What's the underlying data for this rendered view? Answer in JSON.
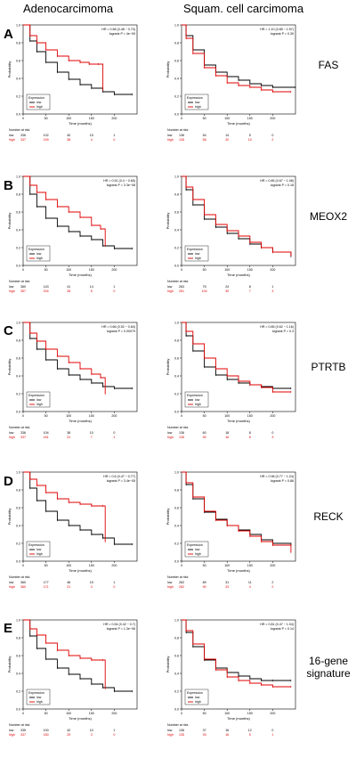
{
  "column_titles": [
    "Adenocarcimoma",
    "Squam. cell carcimoma"
  ],
  "rows": [
    {
      "letter": "A",
      "gene": "FAS",
      "panels": [
        {
          "hr_text": "HR = 0.58 (0.48 − 0.70)",
          "p_text": "logrank P = 4e−09",
          "risk_header": "Number at risk",
          "risk_low": [
            "low",
            "336",
            "102",
            "40",
            "15",
            "1"
          ],
          "risk_high": [
            "high",
            "337",
            "159",
            "38",
            "4",
            "0"
          ]
        },
        {
          "hr_text": "HR = 1.10 (0.85 − 1.57)",
          "p_text": "logrank P = 0.39",
          "risk_header": "Number at risk",
          "risk_low": [
            "low",
            "136",
            "54",
            "14",
            "5",
            "0"
          ],
          "risk_high": [
            "high",
            "135",
            "58",
            "20",
            "10",
            "2"
          ]
        }
      ]
    },
    {
      "letter": "B",
      "gene": "MEOX2",
      "panels": [
        {
          "hr_text": "HR = 0.51 (0.4 − 0.65)",
          "p_text": "logrank P = 3.3e−08",
          "risk_header": "Number at risk",
          "risk_low": [
            "low",
            "360",
            "143",
            "41",
            "14",
            "1"
          ],
          "risk_high": [
            "high",
            "357",
            "204",
            "28",
            "5",
            "0"
          ]
        },
        {
          "hr_text": "HR = 0.85 (0.67 − 1.08)",
          "p_text": "logrank P = 0.18",
          "risk_header": "Number at risk",
          "risk_low": [
            "low",
            "263",
            "75",
            "24",
            "8",
            "1"
          ],
          "risk_high": [
            "high",
            "261",
            "104",
            "30",
            "7",
            "3"
          ]
        }
      ]
    },
    {
      "letter": "C",
      "gene": "PTRTB",
      "panels": [
        {
          "hr_text": "HR = 0.66 (0.52 − 0.84)",
          "p_text": "logrank P = 0.00079",
          "risk_header": "Number at risk",
          "risk_low": [
            "low",
            "336",
            "104",
            "38",
            "10",
            "0"
          ],
          "risk_high": [
            "high",
            "337",
            "161",
            "31",
            "7",
            "1"
          ]
        },
        {
          "hr_text": "HR = 0.85 (0.62 − 1.16)",
          "p_text": "logrank P = 0.3",
          "risk_header": "Number at risk",
          "risk_low": [
            "low",
            "136",
            "60",
            "18",
            "8",
            "0"
          ],
          "risk_high": [
            "high",
            "135",
            "90",
            "16",
            "8",
            "3"
          ]
        }
      ]
    },
    {
      "letter": "D",
      "gene": "RECK",
      "panels": [
        {
          "hr_text": "HR = 0.6 (0.47 − 0.77)",
          "p_text": "logrank P = 3.4e−05",
          "risk_header": "Number at risk",
          "risk_low": [
            "low",
            "360",
            "177",
            "46",
            "15",
            "1"
          ],
          "risk_high": [
            "high",
            "360",
            "171",
            "21",
            "3",
            "0"
          ]
        },
        {
          "hr_text": "HR = 0.98 (0.77 − 1.24)",
          "p_text": "logrank P = 0.86",
          "risk_header": "Number at risk",
          "risk_low": [
            "low",
            "262",
            "89",
            "31",
            "11",
            "2"
          ],
          "risk_high": [
            "high",
            "262",
            "90",
            "23",
            "4",
            "2"
          ]
        }
      ]
    },
    {
      "letter": "E",
      "gene": "16-gene\nsignature",
      "panels": [
        {
          "hr_text": "HR = 0.54 (0.42 − 0.7)",
          "p_text": "logrank P = 1.3e−06",
          "risk_header": "Number at risk",
          "risk_low": [
            "low",
            "335",
            "100",
            "42",
            "10",
            "1"
          ],
          "risk_high": [
            "high",
            "337",
            "160",
            "29",
            "3",
            "0"
          ]
        },
        {
          "hr_text": "HR = 0.81 (0.47 − 1.04)",
          "p_text": "logrank P = 0.14",
          "risk_header": "Number at risk",
          "risk_low": [
            "low",
            "136",
            "37",
            "16",
            "12",
            "0"
          ],
          "risk_high": [
            "high",
            "135",
            "93",
            "16",
            "5",
            "1"
          ]
        }
      ]
    }
  ],
  "chart_data": {
    "type": "line",
    "xlabel": "Time (months)",
    "ylabel": "Probability",
    "xlim": [
      0,
      250
    ],
    "ylim": [
      0,
      1
    ],
    "xticks": [
      "0",
      "50",
      "100",
      "150",
      "200"
    ],
    "yticks": [
      "0.0",
      "0.2",
      "0.4",
      "0.6",
      "0.8",
      "1.0"
    ],
    "legend_title": "Expression",
    "legend_entries": [
      "low",
      "high"
    ],
    "legend_position": "bottom-left",
    "colors": {
      "low": "#000000",
      "high": "#e00000"
    },
    "panels": [
      {
        "row": "A",
        "col": 0,
        "low": [
          [
            0,
            1
          ],
          [
            15,
            0.82
          ],
          [
            30,
            0.7
          ],
          [
            50,
            0.58
          ],
          [
            75,
            0.47
          ],
          [
            100,
            0.39
          ],
          [
            125,
            0.33
          ],
          [
            150,
            0.29
          ],
          [
            175,
            0.25
          ],
          [
            200,
            0.22
          ],
          [
            240,
            0.22
          ]
        ],
        "high": [
          [
            0,
            1
          ],
          [
            15,
            0.88
          ],
          [
            30,
            0.8
          ],
          [
            50,
            0.72
          ],
          [
            75,
            0.65
          ],
          [
            100,
            0.6
          ],
          [
            125,
            0.58
          ],
          [
            145,
            0.56
          ],
          [
            165,
            0.56
          ],
          [
            175,
            0.27
          ]
        ]
      },
      {
        "row": "A",
        "col": 1,
        "low": [
          [
            0,
            1
          ],
          [
            10,
            0.88
          ],
          [
            25,
            0.72
          ],
          [
            50,
            0.55
          ],
          [
            75,
            0.47
          ],
          [
            100,
            0.42
          ],
          [
            125,
            0.38
          ],
          [
            150,
            0.34
          ],
          [
            175,
            0.32
          ],
          [
            200,
            0.3
          ],
          [
            250,
            0.3
          ]
        ],
        "high": [
          [
            0,
            1
          ],
          [
            10,
            0.85
          ],
          [
            25,
            0.68
          ],
          [
            50,
            0.52
          ],
          [
            75,
            0.43
          ],
          [
            100,
            0.35
          ],
          [
            125,
            0.32
          ],
          [
            150,
            0.3
          ],
          [
            175,
            0.27
          ],
          [
            200,
            0.25
          ],
          [
            240,
            0.25
          ]
        ]
      },
      {
        "row": "B",
        "col": 0,
        "low": [
          [
            0,
            1
          ],
          [
            15,
            0.8
          ],
          [
            30,
            0.66
          ],
          [
            50,
            0.53
          ],
          [
            75,
            0.44
          ],
          [
            100,
            0.38
          ],
          [
            125,
            0.33
          ],
          [
            150,
            0.29
          ],
          [
            175,
            0.22
          ],
          [
            200,
            0.19
          ],
          [
            240,
            0.19
          ]
        ],
        "high": [
          [
            0,
            1
          ],
          [
            15,
            0.9
          ],
          [
            30,
            0.82
          ],
          [
            50,
            0.74
          ],
          [
            75,
            0.66
          ],
          [
            100,
            0.6
          ],
          [
            125,
            0.54
          ],
          [
            150,
            0.45
          ],
          [
            170,
            0.41
          ],
          [
            180,
            0.22
          ]
        ]
      },
      {
        "row": "B",
        "col": 1,
        "low": [
          [
            0,
            1
          ],
          [
            10,
            0.85
          ],
          [
            25,
            0.68
          ],
          [
            50,
            0.52
          ],
          [
            75,
            0.43
          ],
          [
            100,
            0.36
          ],
          [
            125,
            0.3
          ],
          [
            150,
            0.24
          ],
          [
            175,
            0.2
          ],
          [
            200,
            0.15
          ],
          [
            240,
            0.1
          ]
        ],
        "high": [
          [
            0,
            1
          ],
          [
            10,
            0.88
          ],
          [
            25,
            0.74
          ],
          [
            50,
            0.57
          ],
          [
            75,
            0.46
          ],
          [
            100,
            0.39
          ],
          [
            125,
            0.33
          ],
          [
            150,
            0.26
          ],
          [
            175,
            0.2
          ],
          [
            200,
            0.15
          ],
          [
            240,
            0.11
          ]
        ]
      },
      {
        "row": "C",
        "col": 0,
        "low": [
          [
            0,
            1
          ],
          [
            15,
            0.82
          ],
          [
            30,
            0.7
          ],
          [
            50,
            0.58
          ],
          [
            75,
            0.48
          ],
          [
            100,
            0.41
          ],
          [
            125,
            0.36
          ],
          [
            150,
            0.32
          ],
          [
            175,
            0.28
          ],
          [
            200,
            0.26
          ],
          [
            240,
            0.26
          ]
        ],
        "high": [
          [
            0,
            1
          ],
          [
            15,
            0.88
          ],
          [
            30,
            0.79
          ],
          [
            50,
            0.7
          ],
          [
            75,
            0.62
          ],
          [
            100,
            0.55
          ],
          [
            125,
            0.48
          ],
          [
            150,
            0.42
          ],
          [
            170,
            0.38
          ],
          [
            180,
            0.2
          ]
        ]
      },
      {
        "row": "C",
        "col": 1,
        "low": [
          [
            0,
            1
          ],
          [
            10,
            0.85
          ],
          [
            25,
            0.68
          ],
          [
            50,
            0.5
          ],
          [
            75,
            0.41
          ],
          [
            100,
            0.36
          ],
          [
            125,
            0.32
          ],
          [
            150,
            0.3
          ],
          [
            175,
            0.28
          ],
          [
            200,
            0.26
          ],
          [
            240,
            0.26
          ]
        ],
        "high": [
          [
            0,
            1
          ],
          [
            10,
            0.9
          ],
          [
            25,
            0.76
          ],
          [
            50,
            0.6
          ],
          [
            75,
            0.48
          ],
          [
            100,
            0.4
          ],
          [
            125,
            0.34
          ],
          [
            150,
            0.3
          ],
          [
            175,
            0.27
          ],
          [
            200,
            0.22
          ],
          [
            240,
            0.22
          ]
        ]
      },
      {
        "row": "D",
        "col": 0,
        "low": [
          [
            0,
            1
          ],
          [
            15,
            0.82
          ],
          [
            30,
            0.68
          ],
          [
            50,
            0.56
          ],
          [
            75,
            0.46
          ],
          [
            100,
            0.4
          ],
          [
            125,
            0.35
          ],
          [
            150,
            0.3
          ],
          [
            175,
            0.26
          ],
          [
            200,
            0.19
          ],
          [
            240,
            0.19
          ]
        ],
        "high": [
          [
            0,
            1
          ],
          [
            15,
            0.92
          ],
          [
            30,
            0.85
          ],
          [
            50,
            0.77
          ],
          [
            75,
            0.7
          ],
          [
            100,
            0.66
          ],
          [
            125,
            0.64
          ],
          [
            150,
            0.62
          ],
          [
            175,
            0.62
          ],
          [
            180,
            0.22
          ]
        ]
      },
      {
        "row": "D",
        "col": 1,
        "low": [
          [
            0,
            1
          ],
          [
            10,
            0.86
          ],
          [
            25,
            0.7
          ],
          [
            50,
            0.55
          ],
          [
            75,
            0.47
          ],
          [
            100,
            0.4
          ],
          [
            125,
            0.35
          ],
          [
            150,
            0.3
          ],
          [
            175,
            0.24
          ],
          [
            200,
            0.2
          ],
          [
            240,
            0.18
          ]
        ],
        "high": [
          [
            0,
            1
          ],
          [
            10,
            0.88
          ],
          [
            25,
            0.72
          ],
          [
            50,
            0.56
          ],
          [
            75,
            0.46
          ],
          [
            100,
            0.4
          ],
          [
            125,
            0.34
          ],
          [
            150,
            0.28
          ],
          [
            175,
            0.22
          ],
          [
            200,
            0.18
          ],
          [
            240,
            0.1
          ]
        ]
      },
      {
        "row": "E",
        "col": 0,
        "low": [
          [
            0,
            1
          ],
          [
            15,
            0.82
          ],
          [
            30,
            0.68
          ],
          [
            50,
            0.56
          ],
          [
            75,
            0.46
          ],
          [
            100,
            0.39
          ],
          [
            125,
            0.34
          ],
          [
            150,
            0.28
          ],
          [
            175,
            0.24
          ],
          [
            200,
            0.2
          ],
          [
            240,
            0.2
          ]
        ],
        "high": [
          [
            0,
            1
          ],
          [
            15,
            0.9
          ],
          [
            30,
            0.83
          ],
          [
            50,
            0.74
          ],
          [
            75,
            0.66
          ],
          [
            100,
            0.6
          ],
          [
            125,
            0.57
          ],
          [
            150,
            0.55
          ],
          [
            175,
            0.55
          ],
          [
            180,
            0.23
          ]
        ]
      },
      {
        "row": "E",
        "col": 1,
        "low": [
          [
            0,
            1
          ],
          [
            10,
            0.86
          ],
          [
            25,
            0.7
          ],
          [
            50,
            0.55
          ],
          [
            75,
            0.46
          ],
          [
            100,
            0.41
          ],
          [
            125,
            0.37
          ],
          [
            150,
            0.34
          ],
          [
            175,
            0.32
          ],
          [
            200,
            0.32
          ],
          [
            240,
            0.32
          ]
        ],
        "high": [
          [
            0,
            1
          ],
          [
            10,
            0.88
          ],
          [
            25,
            0.73
          ],
          [
            50,
            0.56
          ],
          [
            75,
            0.44
          ],
          [
            100,
            0.36
          ],
          [
            125,
            0.32
          ],
          [
            150,
            0.29
          ],
          [
            175,
            0.27
          ],
          [
            200,
            0.25
          ],
          [
            240,
            0.25
          ]
        ]
      }
    ]
  }
}
